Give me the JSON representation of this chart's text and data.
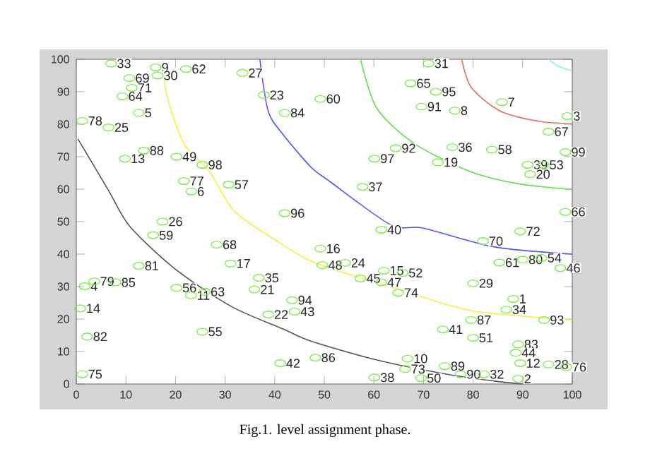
{
  "chart_data": {
    "type": "scatter",
    "xlim": [
      0,
      100
    ],
    "ylim": [
      0,
      100
    ],
    "xticks": [
      0,
      10,
      20,
      30,
      40,
      50,
      60,
      70,
      80,
      90,
      100
    ],
    "yticks": [
      0,
      10,
      20,
      30,
      40,
      50,
      60,
      70,
      80,
      90,
      100
    ],
    "annotations": [
      "Fig.1. level assignment phase.",
      {
        "text": "33",
        "x": 7,
        "y": 98.7
      },
      {
        "text": "9",
        "x": 16,
        "y": 97.5
      },
      {
        "text": "30",
        "x": 16.4,
        "y": 95
      },
      {
        "text": "62",
        "x": 22.1,
        "y": 97
      },
      {
        "text": "69",
        "x": 10.7,
        "y": 94.2
      },
      {
        "text": "71",
        "x": 11.2,
        "y": 91.2
      },
      {
        "text": "64",
        "x": 9.3,
        "y": 88.6
      },
      {
        "text": "5",
        "x": 12.6,
        "y": 83.5
      },
      {
        "text": "78",
        "x": 1.2,
        "y": 81
      },
      {
        "text": "25",
        "x": 6.5,
        "y": 79
      },
      {
        "text": "13",
        "x": 9.8,
        "y": 69.4
      },
      {
        "text": "88",
        "x": 13.6,
        "y": 71.9
      },
      {
        "text": "49",
        "x": 20.2,
        "y": 70
      },
      {
        "text": "98",
        "x": 25.4,
        "y": 67.5
      },
      {
        "text": "77",
        "x": 21.7,
        "y": 62.5
      },
      {
        "text": "6",
        "x": 23.2,
        "y": 59.3
      },
      {
        "text": "57",
        "x": 30.7,
        "y": 61.4
      },
      {
        "text": "27",
        "x": 33.5,
        "y": 95.8
      },
      {
        "text": "23",
        "x": 37.8,
        "y": 89
      },
      {
        "text": "84",
        "x": 42,
        "y": 83.5
      },
      {
        "text": "96",
        "x": 42,
        "y": 52.6
      },
      {
        "text": "26",
        "x": 17.4,
        "y": 50
      },
      {
        "text": "31",
        "x": 71,
        "y": 98.7
      },
      {
        "text": "65",
        "x": 67.4,
        "y": 92.6
      },
      {
        "text": "95",
        "x": 72.5,
        "y": 90
      },
      {
        "text": "60",
        "x": 49.2,
        "y": 87.8
      },
      {
        "text": "91",
        "x": 69.6,
        "y": 85.4
      },
      {
        "text": "8",
        "x": 76.3,
        "y": 84.2
      },
      {
        "text": "7",
        "x": 85.8,
        "y": 86.8
      },
      {
        "text": "3",
        "x": 99,
        "y": 82.5
      },
      {
        "text": "67",
        "x": 95.2,
        "y": 77.7
      },
      {
        "text": "99",
        "x": 98.6,
        "y": 71.4
      },
      {
        "text": "92",
        "x": 64.4,
        "y": 72.6
      },
      {
        "text": "97",
        "x": 60.1,
        "y": 69.4
      },
      {
        "text": "36",
        "x": 75.8,
        "y": 72.9
      },
      {
        "text": "19",
        "x": 72.9,
        "y": 68.3
      },
      {
        "text": "58",
        "x": 83.8,
        "y": 72.2
      },
      {
        "text": "39",
        "x": 91,
        "y": 67.5
      },
      {
        "text": "53",
        "x": 94.2,
        "y": 67.5
      },
      {
        "text": "20",
        "x": 91.5,
        "y": 64.6
      },
      {
        "text": "37",
        "x": 57.7,
        "y": 60.7
      },
      {
        "text": "66",
        "x": 98.6,
        "y": 53
      },
      {
        "text": "59",
        "x": 15.5,
        "y": 45.8
      },
      {
        "text": "81",
        "x": 12.6,
        "y": 36.4
      },
      {
        "text": "68",
        "x": 28.3,
        "y": 42.9
      },
      {
        "text": "17",
        "x": 31.1,
        "y": 37.1
      },
      {
        "text": "35",
        "x": 36.8,
        "y": 32.7
      },
      {
        "text": "21",
        "x": 35.9,
        "y": 29.1
      },
      {
        "text": "4",
        "x": 1.7,
        "y": 30.1
      },
      {
        "text": "79",
        "x": 3.6,
        "y": 31.6
      },
      {
        "text": "85",
        "x": 7.9,
        "y": 31.3
      },
      {
        "text": "56",
        "x": 20.2,
        "y": 29.6
      },
      {
        "text": "11",
        "x": 23.1,
        "y": 27.3
      },
      {
        "text": "63",
        "x": 25.9,
        "y": 28.4
      },
      {
        "text": "14",
        "x": 0.8,
        "y": 23.3
      },
      {
        "text": "82",
        "x": 2.2,
        "y": 14.6
      },
      {
        "text": "55",
        "x": 25.4,
        "y": 16.1
      },
      {
        "text": "22",
        "x": 38.7,
        "y": 21.4
      },
      {
        "text": "94",
        "x": 43.5,
        "y": 25.8
      },
      {
        "text": "43",
        "x": 44,
        "y": 22.3
      },
      {
        "text": "42",
        "x": 41.1,
        "y": 6.4
      },
      {
        "text": "75",
        "x": 1.2,
        "y": 3
      },
      {
        "text": "40",
        "x": 61.5,
        "y": 47.5
      },
      {
        "text": "16",
        "x": 49.2,
        "y": 41.7
      },
      {
        "text": "48",
        "x": 49.6,
        "y": 36.6
      },
      {
        "text": "24",
        "x": 54.2,
        "y": 37.3
      },
      {
        "text": "15",
        "x": 62,
        "y": 34.9
      },
      {
        "text": "52",
        "x": 65.8,
        "y": 34.2
      },
      {
        "text": "45",
        "x": 57.3,
        "y": 32.5
      },
      {
        "text": "47",
        "x": 61.5,
        "y": 31.3
      },
      {
        "text": "74",
        "x": 64.9,
        "y": 28.1
      },
      {
        "text": "70",
        "x": 82,
        "y": 44
      },
      {
        "text": "72",
        "x": 89.5,
        "y": 47
      },
      {
        "text": "61",
        "x": 85.3,
        "y": 37.4
      },
      {
        "text": "80",
        "x": 90,
        "y": 38.3
      },
      {
        "text": "54",
        "x": 93.8,
        "y": 38.8
      },
      {
        "text": "46",
        "x": 97.6,
        "y": 35.7
      },
      {
        "text": "29",
        "x": 80,
        "y": 31
      },
      {
        "text": "1",
        "x": 88.1,
        "y": 26.2
      },
      {
        "text": "34",
        "x": 86.7,
        "y": 22.9
      },
      {
        "text": "87",
        "x": 79.6,
        "y": 19.7
      },
      {
        "text": "93",
        "x": 94.3,
        "y": 19.7
      },
      {
        "text": "41",
        "x": 73.9,
        "y": 16.8
      },
      {
        "text": "51",
        "x": 80,
        "y": 14.2
      },
      {
        "text": "83",
        "x": 89.1,
        "y": 12.2
      },
      {
        "text": "44",
        "x": 88.6,
        "y": 9.6
      },
      {
        "text": "12",
        "x": 89.5,
        "y": 6.4
      },
      {
        "text": "28",
        "x": 95.2,
        "y": 6
      },
      {
        "text": "76",
        "x": 98.8,
        "y": 5.2
      },
      {
        "text": "2",
        "x": 89.1,
        "y": 1.6
      },
      {
        "text": "32",
        "x": 82.2,
        "y": 3
      },
      {
        "text": "86",
        "x": 48.2,
        "y": 8.1
      },
      {
        "text": "38",
        "x": 60.1,
        "y": 2
      },
      {
        "text": "10",
        "x": 66.8,
        "y": 7.8
      },
      {
        "text": "73",
        "x": 66.3,
        "y": 4.6
      },
      {
        "text": "50",
        "x": 69.5,
        "y": 1.8
      },
      {
        "text": "89",
        "x": 74.3,
        "y": 5.5
      },
      {
        "text": "90",
        "x": 77.5,
        "y": 3
      }
    ],
    "series": [
      {
        "type": "scatter",
        "marker": "circle",
        "color": "#77ee44",
        "x": [
          7,
          16,
          16.4,
          22.1,
          10.7,
          11.2,
          9.3,
          12.6,
          1.2,
          6.5,
          9.8,
          13.6,
          20.2,
          25.4,
          21.7,
          23.2,
          30.7,
          33.5,
          37.8,
          42,
          42,
          17.4,
          71,
          67.4,
          72.5,
          49.2,
          69.6,
          76.3,
          85.8,
          99,
          95.2,
          98.6,
          64.4,
          60.1,
          75.8,
          72.9,
          83.8,
          91,
          94.2,
          91.5,
          57.7,
          98.6,
          15.5,
          12.6,
          28.3,
          31.1,
          36.8,
          35.9,
          1.7,
          3.6,
          7.9,
          20.2,
          23.1,
          25.9,
          0.8,
          2.2,
          25.4,
          38.7,
          43.5,
          44,
          41.1,
          1.2,
          61.5,
          49.2,
          49.6,
          54.2,
          62,
          65.8,
          57.3,
          61.5,
          64.9,
          82,
          89.5,
          85.3,
          90,
          93.8,
          97.6,
          80,
          88.1,
          86.7,
          79.6,
          94.3,
          73.9,
          80,
          89.1,
          88.6,
          89.5,
          95.2,
          98.8,
          89.1,
          82.2,
          48.2,
          60.1,
          66.8,
          66.3,
          69.5,
          74.3,
          77.5
        ],
        "values": [
          98.7,
          97.5,
          95,
          97,
          94.2,
          91.2,
          88.6,
          83.5,
          81,
          79,
          69.4,
          71.9,
          70,
          67.5,
          62.5,
          59.3,
          61.4,
          95.8,
          89,
          83.5,
          52.6,
          50,
          98.7,
          92.6,
          90,
          87.8,
          85.4,
          84.2,
          86.8,
          82.5,
          77.7,
          71.4,
          72.6,
          69.4,
          72.9,
          68.3,
          72.2,
          67.5,
          67.5,
          64.6,
          60.7,
          53,
          45.8,
          36.4,
          42.9,
          37.1,
          32.7,
          29.1,
          30.1,
          31.6,
          31.3,
          29.6,
          27.3,
          28.4,
          23.3,
          14.6,
          16.1,
          21.4,
          25.8,
          22.3,
          6.4,
          3,
          47.5,
          41.7,
          36.6,
          37.3,
          34.9,
          34.2,
          32.5,
          31.3,
          28.1,
          44,
          47,
          37.4,
          38.3,
          38.8,
          35.7,
          31,
          26.2,
          22.9,
          19.7,
          19.7,
          16.8,
          14.2,
          12.2,
          9.6,
          6.4,
          6,
          5.2,
          1.6,
          3,
          8.1,
          2,
          7.8,
          4.6,
          1.8,
          5.5,
          3
        ]
      },
      {
        "type": "line",
        "color": "#88eef6",
        "x": [
          95.2,
          97,
          99.8
        ],
        "values": [
          100,
          98,
          96.5
        ]
      },
      {
        "type": "line",
        "color": "#e07060",
        "x": [
          77.7,
          79.6,
          85.3,
          92.9,
          100
        ],
        "values": [
          100,
          91.4,
          84.2,
          81,
          80.1
        ]
      },
      {
        "type": "line",
        "color": "#66dd44",
        "x": [
          57.3,
          60.6,
          68.2,
          79.6,
          89,
          100
        ],
        "values": [
          100,
          84.9,
          74,
          65.3,
          61.7,
          59.9
        ]
      },
      {
        "type": "line",
        "color": "#5555ee",
        "x": [
          37,
          38.7,
          41.6,
          47.3,
          51,
          63.4,
          70,
          84.3,
          100
        ],
        "values": [
          100,
          84,
          77,
          66.8,
          62.5,
          49,
          48,
          42.2,
          40
        ]
      },
      {
        "type": "line",
        "color": "#f5f040",
        "x": [
          17.4,
          18.3,
          21.7,
          26.9,
          32,
          41.6,
          46.3,
          51,
          65.3,
          79.6,
          100
        ],
        "values": [
          99.4,
          88.6,
          74,
          65.3,
          53,
          42.9,
          38.6,
          35.7,
          29,
          22.6,
          19.7
        ]
      },
      {
        "type": "line",
        "color": "#555555",
        "x": [
          0.3,
          6.5,
          10.7,
          19.7,
          31.1,
          41.6,
          47.3,
          60.6,
          74.8,
          84.3,
          90
        ],
        "values": [
          75.5,
          59.6,
          48.7,
          35.7,
          24,
          17,
          13.2,
          7.4,
          3,
          0.9,
          0
        ]
      }
    ]
  }
}
